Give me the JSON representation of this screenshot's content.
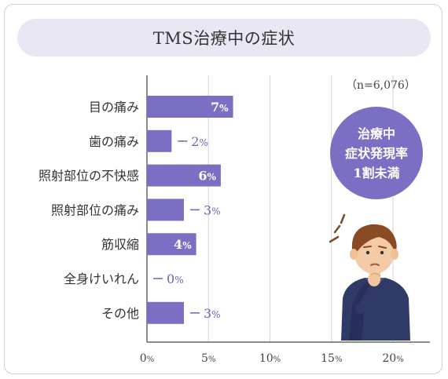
{
  "title": "TMS治療中の症状",
  "note": "（n=6,076）",
  "badge": {
    "lines": [
      "治療中",
      "症状発現率",
      "1割未満"
    ]
  },
  "colors": {
    "bar": "#7a6fc2",
    "badge": "#7a6fc2",
    "title_bg": "#e9e7f3",
    "axis": "#666666",
    "grid": "#d4d4d4",
    "label_out": "#6b62b8"
  },
  "chart_data": {
    "type": "bar",
    "orientation": "horizontal",
    "categories": [
      "目の痛み",
      "歯の痛み",
      "照射部位の不快感",
      "照射部位の痛み",
      "筋収縮",
      "全身けいれん",
      "その他"
    ],
    "values": [
      7,
      2,
      6,
      3,
      4,
      0,
      3
    ],
    "value_labels": [
      "7",
      "2",
      "6",
      "3",
      "4",
      "0",
      "3"
    ],
    "value_suffix": "%",
    "xlim": [
      0,
      23
    ],
    "x_ticks": [
      0,
      5,
      10,
      15,
      20
    ],
    "x_tick_labels": [
      "0",
      "5",
      "10",
      "15",
      "20"
    ],
    "x_tick_suffix": "%",
    "label_inside_min": 4,
    "grid": true
  }
}
